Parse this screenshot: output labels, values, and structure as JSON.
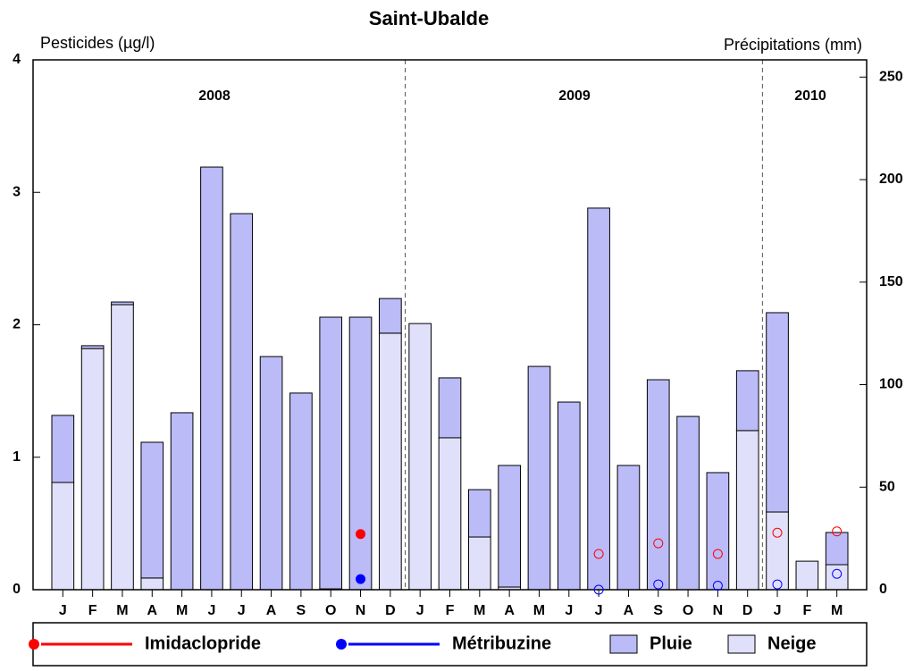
{
  "chart_data": {
    "type": "bar",
    "stacked": true,
    "title": "Saint-Ubalde",
    "y_label": "Pesticides (µg/l)",
    "y2_label": "Précipitations (mm)",
    "annotations": [
      "2008",
      "2009",
      "2010"
    ],
    "categories": [
      "J",
      "F",
      "M",
      "A",
      "M",
      "J",
      "J",
      "A",
      "S",
      "O",
      "N",
      "D",
      "J",
      "F",
      "M",
      "A",
      "M",
      "J",
      "J",
      "A",
      "S",
      "O",
      "N",
      "D",
      "J",
      "F",
      "M"
    ],
    "series": [
      {
        "name": "Imidaclopride",
        "type": "line",
        "axis": "y",
        "color": "#ff0000",
        "values": [
          null,
          null,
          null,
          null,
          null,
          null,
          null,
          null,
          null,
          null,
          0.42,
          null,
          null,
          null,
          null,
          null,
          null,
          null,
          0.27,
          null,
          0.35,
          null,
          0.27,
          null,
          0.43,
          null,
          0.44
        ]
      },
      {
        "name": "Métribuzine",
        "type": "line",
        "axis": "y",
        "color": "#0000ff",
        "values": [
          null,
          null,
          null,
          null,
          null,
          null,
          null,
          null,
          null,
          null,
          0.08,
          null,
          null,
          null,
          null,
          null,
          null,
          null,
          0.0,
          null,
          0.04,
          null,
          0.03,
          null,
          0.04,
          null,
          0.12
        ]
      },
      {
        "name": "Pluie",
        "type": "bar",
        "axis": "y2",
        "color": "#bbbbf7",
        "values": [
          32.7,
          1.4,
          1.3,
          66.2,
          86.3,
          206.1,
          183.4,
          113.7,
          95.9,
          132.5,
          132.9,
          16.9,
          0,
          29.2,
          23.1,
          59.3,
          108.9,
          91.5,
          186.1,
          60.6,
          102.4,
          84.5,
          57.1,
          29.2,
          97.2,
          0,
          15.7
        ]
      },
      {
        "name": "Neige",
        "type": "bar",
        "axis": "y2",
        "color": "#e0e0fa",
        "values": [
          52.3,
          117.6,
          139.0,
          5.7,
          0,
          0,
          0,
          0,
          0,
          0.4,
          0,
          125.1,
          129.8,
          74.1,
          25.7,
          1.3,
          0,
          0,
          0,
          0,
          0,
          0,
          0,
          77.6,
          37.9,
          13.9,
          12.2
        ]
      }
    ],
    "ylim": [
      0,
      4
    ],
    "yticks": [
      0,
      1,
      2,
      3,
      4
    ],
    "y2lim": [
      0,
      258.4
    ],
    "y2ticks": [
      0,
      50,
      100,
      150,
      200,
      250
    ]
  }
}
